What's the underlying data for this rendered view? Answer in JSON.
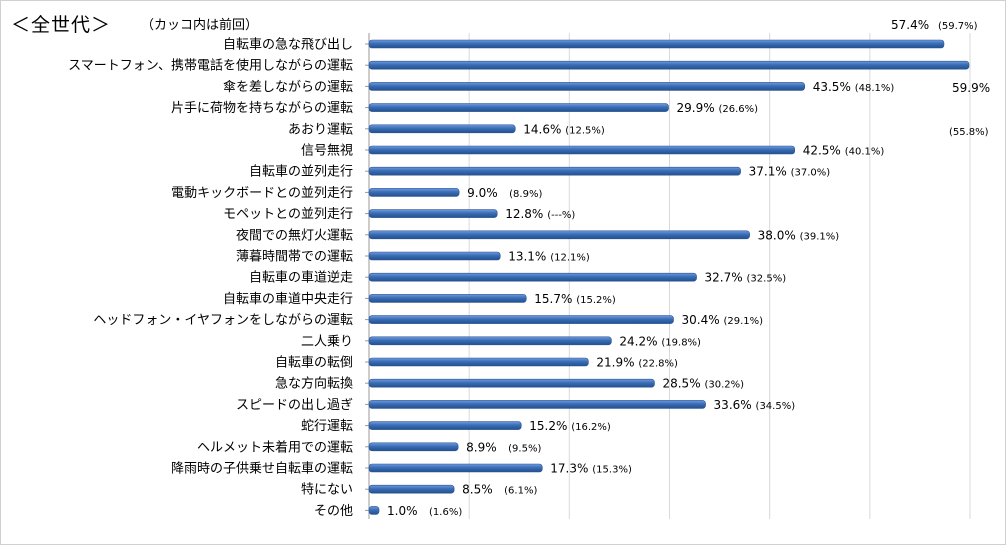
{
  "chart_data": {
    "type": "bar",
    "orientation": "horizontal",
    "title": "＜全世代＞",
    "subtitle": "（カッコ内は前回）",
    "xlim": [
      0,
      60
    ],
    "grid": true,
    "bar_color": "#3a6db5",
    "categories": [
      "自転車の急な飛び出し",
      "スマートフォン、携帯電話を使用しながらの運転",
      "傘を差しながらの運転",
      "片手に荷物を持ちながらの運転",
      "あおり運転",
      "信号無視",
      "自転車の並列走行",
      "電動キックボードとの並列走行",
      "モペットとの並列走行",
      "夜間での無灯火運転",
      "薄暮時間帯での運転",
      "自転車の車道逆走",
      "自転車の車道中央走行",
      "ヘッドフォン・イヤフォンをしながらの運転",
      "二人乗り",
      "自転車の転倒",
      "急な方向転換",
      "スピードの出し過ぎ",
      "蛇行運転",
      "ヘルメット未着用での運転",
      "降雨時の子供乗せ自転車の運転",
      "特にない",
      "その他"
    ],
    "values": [
      57.4,
      59.9,
      43.5,
      29.9,
      14.6,
      42.5,
      37.1,
      9.0,
      12.8,
      38.0,
      13.1,
      32.7,
      15.7,
      30.4,
      24.2,
      21.9,
      28.5,
      33.6,
      15.2,
      8.9,
      17.3,
      8.5,
      1.0
    ],
    "value_labels": [
      "57.4%",
      "59.9%",
      "43.5%",
      "29.9%",
      "14.6%",
      "42.5%",
      "37.1%",
      "9.0%",
      "12.8%",
      "38.0%",
      "13.1%",
      "32.7%",
      "15.7%",
      "30.4%",
      "24.2%",
      "21.9%",
      "28.5%",
      "33.6%",
      "15.2%",
      "8.9%",
      "17.3%",
      "8.5%",
      "1.0%"
    ],
    "previous_labels": [
      "(59.7%)",
      "(55.8%)",
      "(48.1%)",
      "(26.6%)",
      "(12.5%)",
      "(40.1%)",
      "(37.0%)",
      "(8.9%)",
      "(---%)",
      "(39.1%)",
      "(12.1%)",
      "(32.5%)",
      "(15.2%)",
      "(29.1%)",
      "(19.8%)",
      "(22.8%)",
      "(30.2%)",
      "(34.5%)",
      "(16.2%)",
      "(9.5%)",
      "(15.3%)",
      "(6.1%)",
      "(1.6%)"
    ]
  }
}
